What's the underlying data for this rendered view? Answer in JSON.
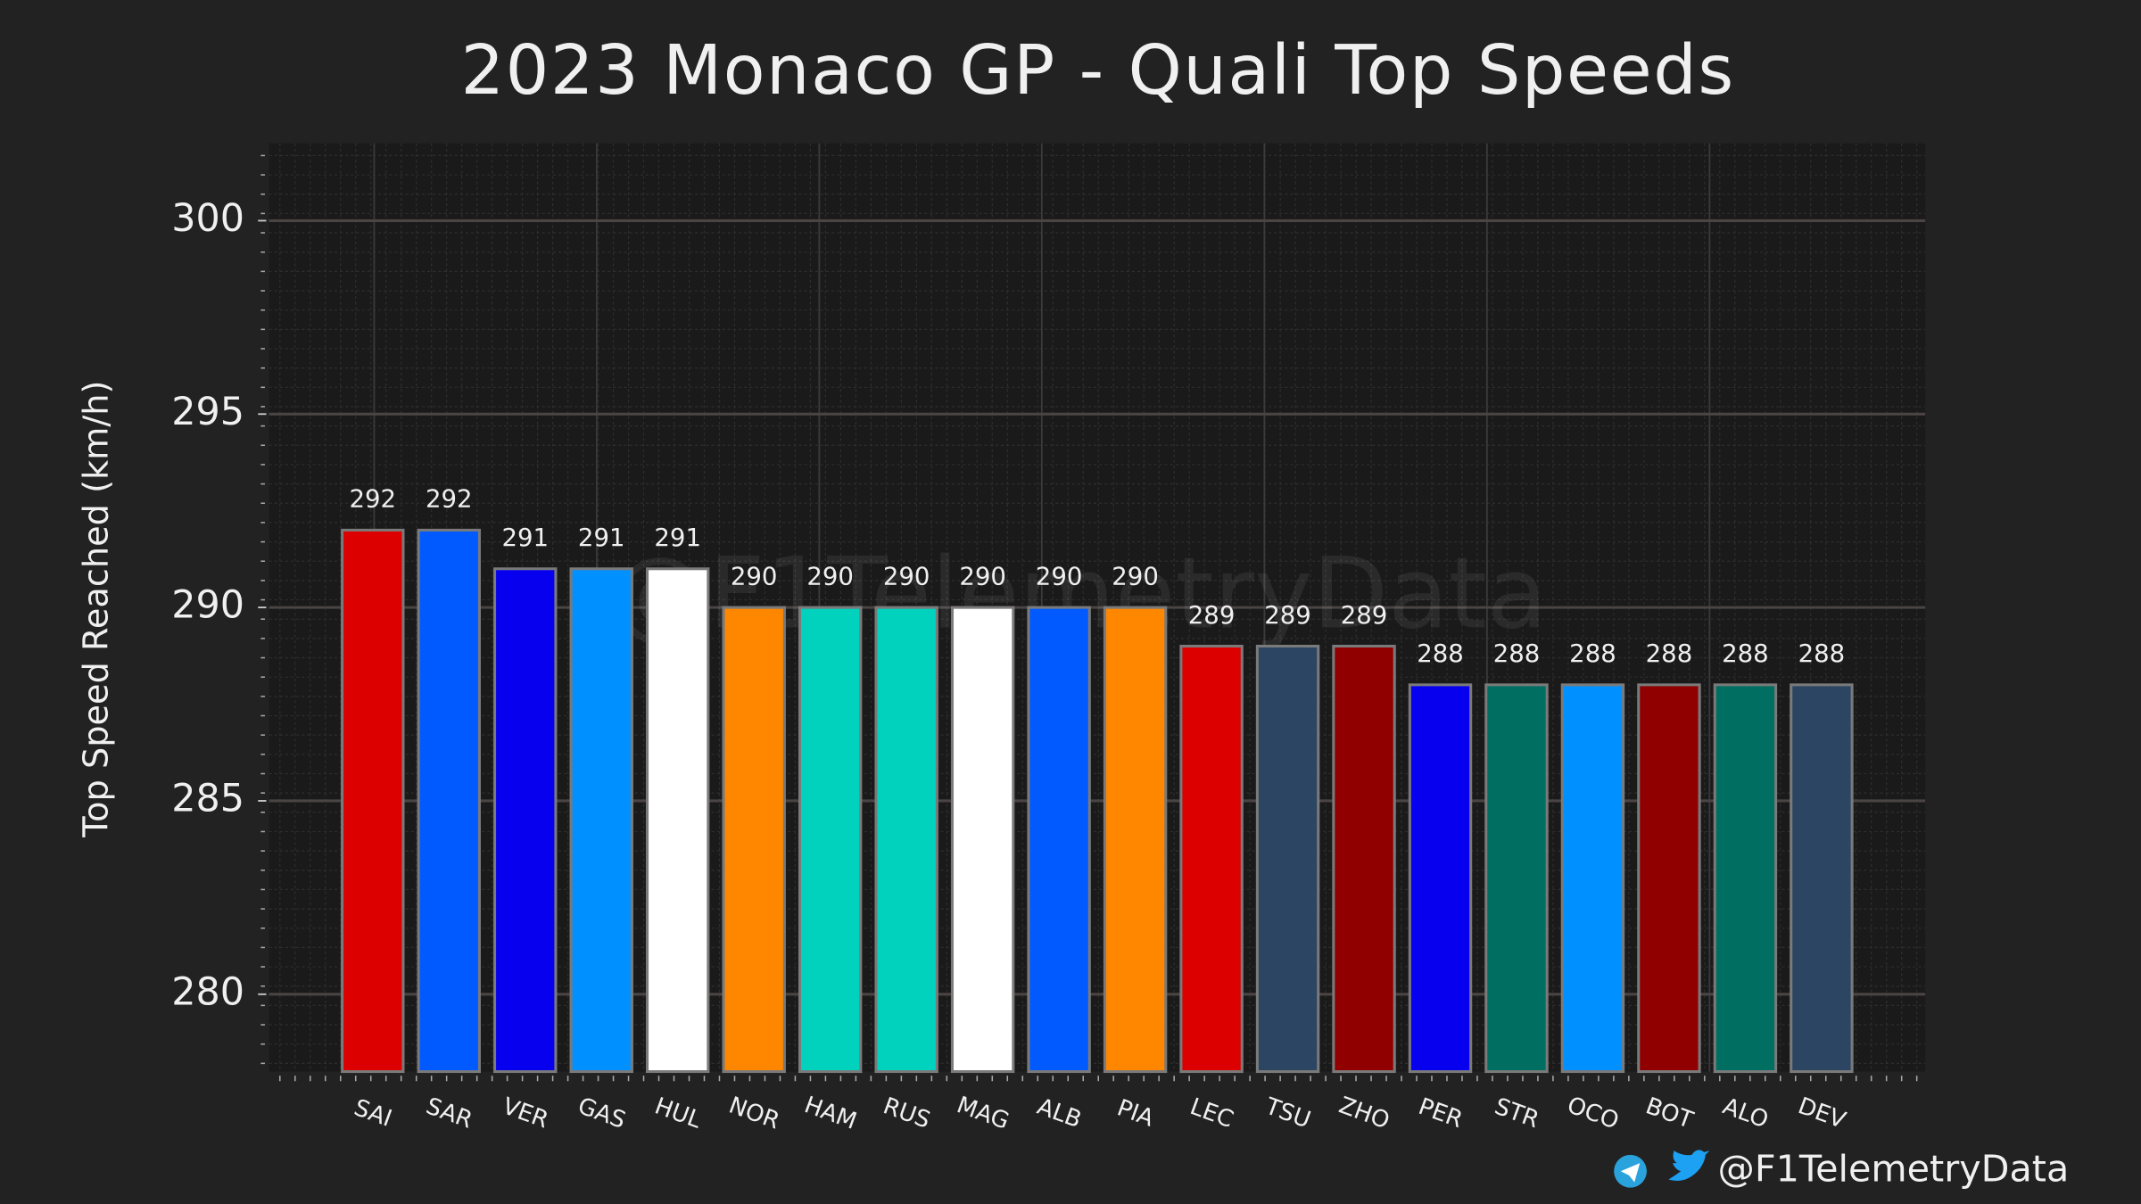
{
  "chart_data": {
    "type": "bar",
    "title": "2023 Monaco GP - Quali Top Speeds",
    "y_label": "Top Speed Reached (km/h)",
    "watermark": "@F1TelemetryData",
    "categories": [
      "SAI",
      "SAR",
      "VER",
      "GAS",
      "HUL",
      "NOR",
      "HAM",
      "RUS",
      "MAG",
      "ALB",
      "PIA",
      "LEC",
      "TSU",
      "ZHO",
      "PER",
      "STR",
      "OCO",
      "BOT",
      "ALO",
      "DEV"
    ],
    "values": [
      292,
      292,
      291,
      291,
      291,
      290,
      290,
      290,
      290,
      290,
      290,
      289,
      289,
      289,
      288,
      288,
      288,
      288,
      288,
      288
    ],
    "colors": [
      "#dc0000",
      "#005aff",
      "#0600ef",
      "#0090ff",
      "#ffffff",
      "#ff8700",
      "#00d2be",
      "#00d2be",
      "#ffffff",
      "#005aff",
      "#ff8700",
      "#dc0000",
      "#2b4562",
      "#900000",
      "#0600ef",
      "#006f62",
      "#0090ff",
      "#900000",
      "#006f62",
      "#2b4562"
    ],
    "ylim": [
      278,
      302
    ],
    "yticks": [
      280,
      285,
      290,
      295,
      300
    ],
    "grid": true
  },
  "footer": {
    "handle": "@F1TelemetryData"
  }
}
